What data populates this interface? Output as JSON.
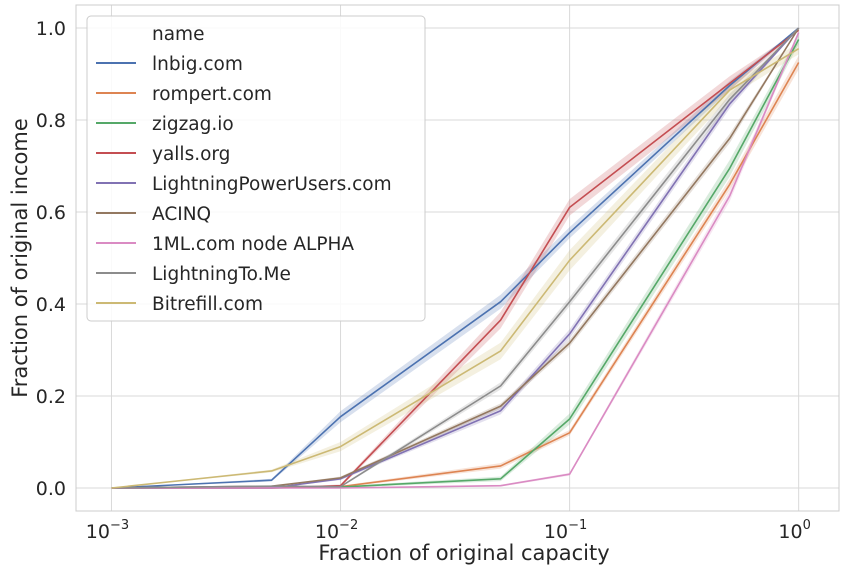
{
  "chart_data": {
    "type": "line",
    "xscale": "log",
    "xlabel": "Fraction of original capacity",
    "ylabel": "Fraction of original income",
    "xlim": [
      0.0007,
      1.5
    ],
    "ylim": [
      -0.05,
      1.05
    ],
    "grid": true,
    "xticks": [
      {
        "value": 0.001,
        "base": "10",
        "exp": "−3"
      },
      {
        "value": 0.01,
        "base": "10",
        "exp": "−2"
      },
      {
        "value": 0.1,
        "base": "10",
        "exp": "−1"
      },
      {
        "value": 1,
        "base": "10",
        "exp": "0"
      }
    ],
    "yticks": [
      {
        "value": 0.0,
        "label": "0.0"
      },
      {
        "value": 0.2,
        "label": "0.2"
      },
      {
        "value": 0.4,
        "label": "0.4"
      },
      {
        "value": 0.6,
        "label": "0.6"
      },
      {
        "value": 0.8,
        "label": "0.8"
      },
      {
        "value": 1.0,
        "label": "1.0"
      }
    ],
    "legend": {
      "title": "name",
      "position": "top-left"
    },
    "x": [
      0.001,
      0.005,
      0.01,
      0.05,
      0.1,
      0.5,
      1
    ],
    "series": [
      {
        "name": "lnbig.com",
        "color": "#4c72b0",
        "values": [
          0,
          0.017,
          0.155,
          0.405,
          0.555,
          0.875,
          1.0
        ],
        "band": [
          0,
          0.003,
          0.012,
          0.015,
          0.012,
          0.01,
          0
        ]
      },
      {
        "name": "rompert.com",
        "color": "#dd8452",
        "values": [
          0,
          0.0,
          0.003,
          0.048,
          0.12,
          0.66,
          0.925
        ],
        "band": [
          0,
          0,
          0.002,
          0.006,
          0.006,
          0.012,
          0.015
        ]
      },
      {
        "name": "zigzag.io",
        "color": "#55a868",
        "values": [
          0,
          0.0,
          0.002,
          0.02,
          0.15,
          0.695,
          0.975
        ],
        "band": [
          0,
          0,
          0.002,
          0.005,
          0.012,
          0.018,
          0.01
        ]
      },
      {
        "name": "yalls.org",
        "color": "#c44e52",
        "values": [
          0,
          0.0,
          0.005,
          0.365,
          0.61,
          0.88,
          0.995
        ],
        "band": [
          0,
          0,
          0.003,
          0.018,
          0.018,
          0.015,
          0
        ]
      },
      {
        "name": "LightningPowerUsers.com",
        "color": "#8172b3",
        "values": [
          0,
          0.0,
          0.02,
          0.168,
          0.335,
          0.835,
          1.0
        ],
        "band": [
          0,
          0,
          0.003,
          0.008,
          0.01,
          0.01,
          0
        ]
      },
      {
        "name": "ACINQ",
        "color": "#937860",
        "values": [
          0,
          0.004,
          0.022,
          0.178,
          0.315,
          0.76,
          1.0
        ],
        "band": [
          0,
          0,
          0.003,
          0.006,
          0.008,
          0.01,
          0
        ]
      },
      {
        "name": "1ML.com node ALPHA",
        "color": "#da8bc3",
        "values": [
          0,
          0.0,
          0.0,
          0.005,
          0.03,
          0.635,
          0.99
        ],
        "band": [
          0,
          0,
          0,
          0.002,
          0.003,
          0.012,
          0.005
        ]
      },
      {
        "name": "LightningTo.Me",
        "color": "#8c8c8c",
        "values": [
          0,
          0.004,
          0.003,
          0.222,
          0.405,
          0.845,
          1.0
        ],
        "band": [
          0,
          0,
          0.002,
          0.008,
          0.01,
          0.012,
          0
        ]
      },
      {
        "name": "Bitrefill.com",
        "color": "#ccb974",
        "values": [
          0,
          0.037,
          0.09,
          0.298,
          0.495,
          0.865,
          0.955
        ],
        "band": [
          0,
          0.003,
          0.01,
          0.018,
          0.022,
          0.015,
          0.012
        ]
      }
    ]
  }
}
